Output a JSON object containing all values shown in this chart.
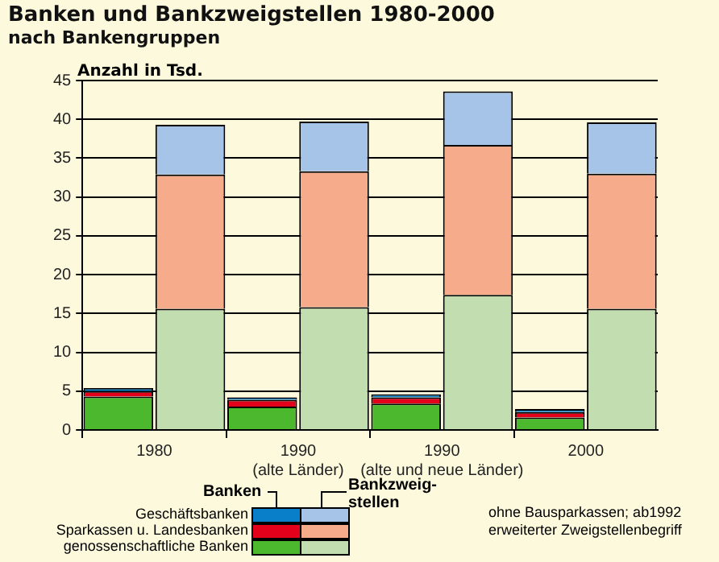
{
  "chart_data": {
    "type": "bar",
    "title": "Banken und Bankzweigstellen 1980-2000",
    "subtitle": "nach Bankengruppen",
    "ylabel": "Anzahl in Tsd.",
    "categories": [
      "1980",
      null,
      "1990\n(alte Länder)",
      null,
      "1990\n(alte und neue Länder)",
      null,
      "2000",
      null
    ],
    "stacked": true,
    "series": [
      {
        "name": "genossenschaftliche Banken",
        "color": "#4cb82e",
        "values": [
          4.3,
          null,
          3.0,
          null,
          3.4,
          null,
          1.6,
          null
        ]
      },
      {
        "name": "Sparkassen u. Landesbanken",
        "color": "#e3001b",
        "values": [
          0.7,
          null,
          0.9,
          null,
          0.8,
          null,
          0.7,
          null
        ]
      },
      {
        "name": "Geschäftsbanken",
        "color": "#0a7fc9",
        "values": [
          0.4,
          null,
          0.3,
          null,
          0.4,
          null,
          0.4,
          null
        ]
      },
      {
        "color": "#c2ddb0",
        "values": [
          null,
          15.6,
          null,
          15.8,
          null,
          17.4,
          null,
          15.6
        ]
      },
      {
        "color": "#f6ab8a",
        "values": [
          null,
          17.3,
          null,
          17.5,
          null,
          19.3,
          null,
          17.4
        ]
      },
      {
        "color": "#a6c3e8",
        "values": [
          null,
          6.4,
          null,
          6.4,
          null,
          6.9,
          null,
          6.6
        ]
      }
    ],
    "ylim": [
      0,
      45
    ],
    "yticks": [
      0,
      5,
      10,
      15,
      20,
      25,
      30,
      35,
      40,
      45
    ],
    "grid": "y",
    "legend": "bottom",
    "annotations": [
      "Banken",
      "Bankzweig-stellen",
      "ohne Bausparkassen; ab1992 erweiterter Zweigstellenbegriff"
    ]
  }
}
